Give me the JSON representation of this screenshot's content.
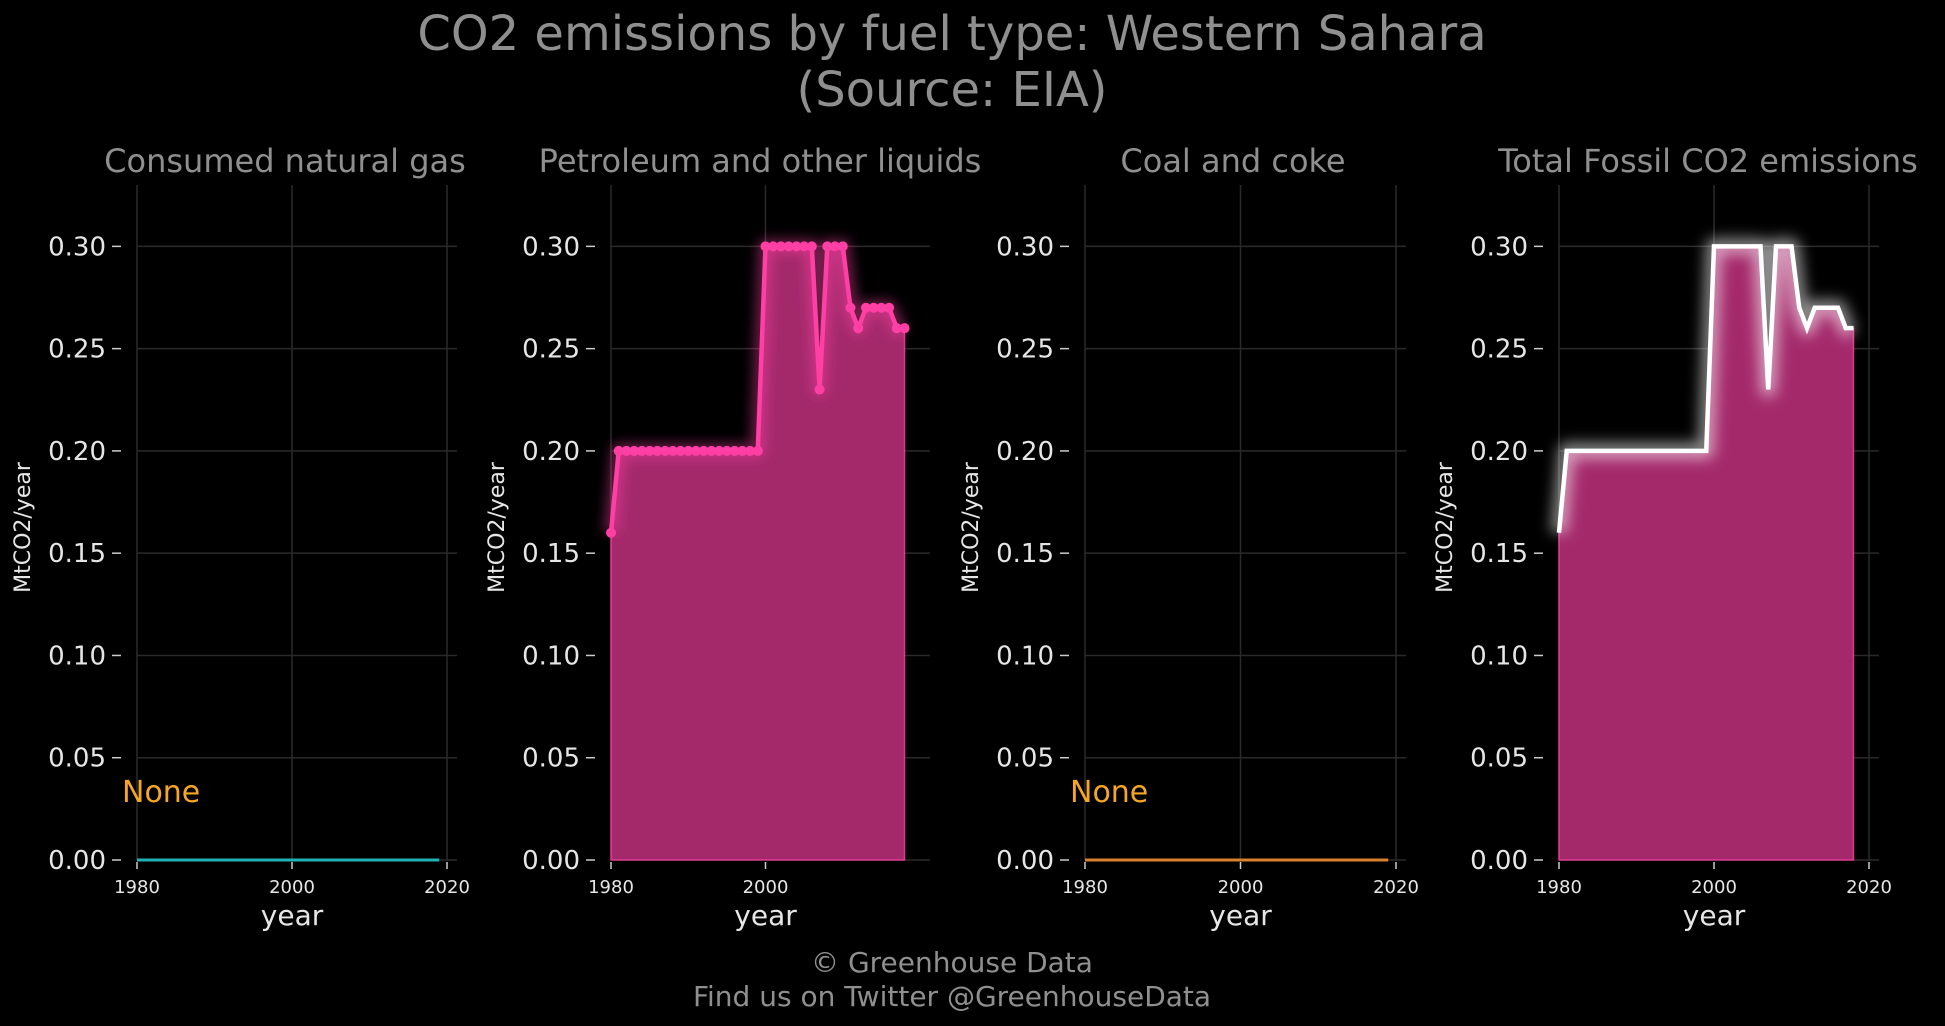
{
  "title_line1": "CO2 emissions by fuel type: Western Sahara",
  "title_line2": "(Source: EIA)",
  "footer_line1": "© Greenhouse Data",
  "footer_line2": "Find us on Twitter @GreenhouseData",
  "colors": {
    "background": "#000000",
    "text": "#8f8f8f",
    "tick": "#e6e6e6",
    "grid": "#2a2a2a",
    "petroleum": "#ff3fa4",
    "fill": "#a4296b",
    "natural_gas": "#1fb3b3",
    "coal": "#d9822b",
    "none_label": "#f5a623",
    "total_line": "#ffffff"
  },
  "chart_data": [
    {
      "type": "line",
      "title": "Consumed natural gas",
      "xlabel": "year",
      "ylabel": "MtCO2/year",
      "xlim": [
        1980,
        2020
      ],
      "ylim": [
        0,
        0.33
      ],
      "x_ticks": [
        "1980",
        "2000",
        "2020"
      ],
      "y_ticks": [
        "0.00",
        "0.05",
        "0.10",
        "0.15",
        "0.20",
        "0.25",
        "0.30"
      ],
      "annotation": "None",
      "series": [
        {
          "x": [
            1980,
            2019
          ],
          "values": [
            0,
            0
          ],
          "color": "#1fb3b3",
          "markers": false,
          "fill": false
        }
      ]
    },
    {
      "type": "area",
      "title": "Petroleum and other liquids",
      "xlabel": "year",
      "ylabel": "MtCO2/year",
      "xlim": [
        1980,
        2020
      ],
      "ylim": [
        0,
        0.33
      ],
      "x_ticks": [
        "1980",
        "2000"
      ],
      "y_ticks": [
        "0.00",
        "0.05",
        "0.10",
        "0.15",
        "0.20",
        "0.25",
        "0.30"
      ],
      "series": [
        {
          "x": [
            1980,
            1981,
            1982,
            1983,
            1984,
            1985,
            1986,
            1987,
            1988,
            1989,
            1990,
            1991,
            1992,
            1993,
            1994,
            1995,
            1996,
            1997,
            1998,
            1999,
            2000,
            2001,
            2002,
            2003,
            2004,
            2005,
            2006,
            2007,
            2008,
            2009,
            2010,
            2011,
            2012,
            2013,
            2014,
            2015,
            2016,
            2017,
            2018
          ],
          "values": [
            0.16,
            0.2,
            0.2,
            0.2,
            0.2,
            0.2,
            0.2,
            0.2,
            0.2,
            0.2,
            0.2,
            0.2,
            0.2,
            0.2,
            0.2,
            0.2,
            0.2,
            0.2,
            0.2,
            0.2,
            0.3,
            0.3,
            0.3,
            0.3,
            0.3,
            0.3,
            0.3,
            0.23,
            0.3,
            0.3,
            0.3,
            0.27,
            0.26,
            0.27,
            0.27,
            0.27,
            0.27,
            0.26,
            0.26
          ],
          "color": "#ff3fa4",
          "markers": true,
          "fill": true
        }
      ]
    },
    {
      "type": "line",
      "title": "Coal and coke",
      "xlabel": "year",
      "ylabel": "MtCO2/year",
      "xlim": [
        1980,
        2020
      ],
      "ylim": [
        0,
        0.33
      ],
      "x_ticks": [
        "1980",
        "2000",
        "2020"
      ],
      "y_ticks": [
        "0.00",
        "0.05",
        "0.10",
        "0.15",
        "0.20",
        "0.25",
        "0.30"
      ],
      "annotation": "None",
      "series": [
        {
          "x": [
            1980,
            2019
          ],
          "values": [
            0,
            0
          ],
          "color": "#d9822b",
          "markers": false,
          "fill": false
        }
      ]
    },
    {
      "type": "area",
      "title": "Total Fossil CO2 emissions",
      "xlabel": "year",
      "ylabel": "MtCO2/year",
      "xlim": [
        1980,
        2020
      ],
      "ylim": [
        0,
        0.33
      ],
      "x_ticks": [
        "1980",
        "2000",
        "2020"
      ],
      "y_ticks": [
        "0.00",
        "0.05",
        "0.10",
        "0.15",
        "0.20",
        "0.25",
        "0.30"
      ],
      "series": [
        {
          "x": [
            1980,
            1981,
            1982,
            1983,
            1984,
            1985,
            1986,
            1987,
            1988,
            1989,
            1990,
            1991,
            1992,
            1993,
            1994,
            1995,
            1996,
            1997,
            1998,
            1999,
            2000,
            2001,
            2002,
            2003,
            2004,
            2005,
            2006,
            2007,
            2008,
            2009,
            2010,
            2011,
            2012,
            2013,
            2014,
            2015,
            2016,
            2017,
            2018
          ],
          "values": [
            0.16,
            0.2,
            0.2,
            0.2,
            0.2,
            0.2,
            0.2,
            0.2,
            0.2,
            0.2,
            0.2,
            0.2,
            0.2,
            0.2,
            0.2,
            0.2,
            0.2,
            0.2,
            0.2,
            0.2,
            0.3,
            0.3,
            0.3,
            0.3,
            0.3,
            0.3,
            0.3,
            0.23,
            0.3,
            0.3,
            0.3,
            0.27,
            0.26,
            0.27,
            0.27,
            0.27,
            0.27,
            0.26,
            0.26
          ],
          "color": "#ffffff",
          "markers": false,
          "fill": true
        }
      ]
    }
  ]
}
